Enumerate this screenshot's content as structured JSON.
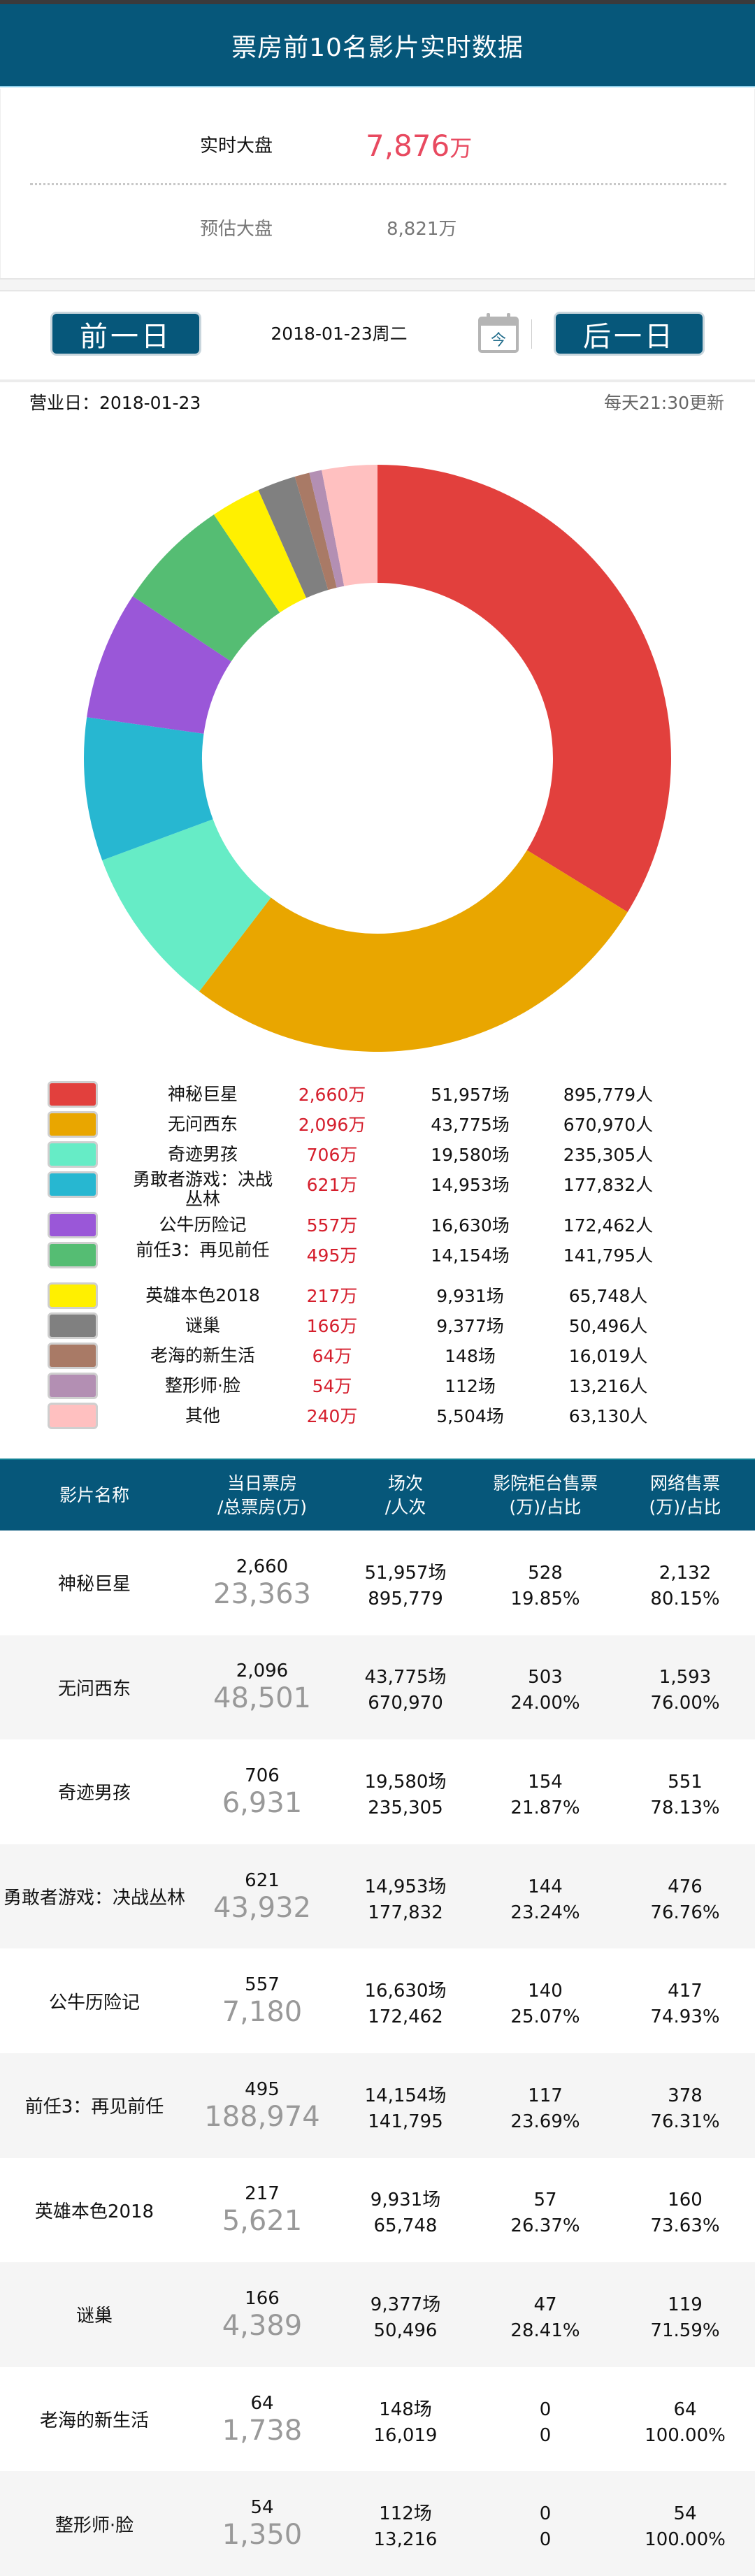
{
  "header": {
    "title": "票房前10名影片实时数据"
  },
  "summary": {
    "realtime_label": "实时大盘",
    "realtime_value": "7,876",
    "realtime_unit": "万",
    "estimate_label": "预估大盘",
    "estimate_value": "8,821万"
  },
  "datenav": {
    "prev_label": "前一日",
    "next_label": "后一日",
    "date": "2018-01-23周二",
    "today_icon_char": "今",
    "business_day": "营业日：2018-01-23",
    "update_note": "每天21:30更新"
  },
  "colors": {
    "brand": "#06577a",
    "realtime_red": "#e84a60",
    "legend_red": "#d51e2c"
  },
  "chart_data": {
    "type": "pie",
    "subtype": "donut",
    "title": "",
    "unit": "万",
    "categories": [
      "神秘巨星",
      "无问西东",
      "奇迹男孩",
      "勇敢者游戏：决战丛林",
      "公牛历险记",
      "前任3：再见前任",
      "英雄本色2018",
      "谜巢",
      "老海的新生活",
      "整形师·脸",
      "其他"
    ],
    "values": [
      2660,
      2096,
      706,
      621,
      557,
      495,
      217,
      166,
      64,
      54,
      240
    ],
    "colors": [
      "#e2403d",
      "#e9a600",
      "#66ecc6",
      "#27b7d1",
      "#9a57d8",
      "#55bd73",
      "#fff000",
      "#808080",
      "#a97a66",
      "#b38fb3",
      "#ffc0c0"
    ],
    "legend_position": "bottom",
    "start_angle": "12 o'clock, clockwise"
  },
  "legend": {
    "items": [
      {
        "name": "神秘巨星",
        "box": "2,660万",
        "shows": "51,957场",
        "audience": "895,779人",
        "lines": 1
      },
      {
        "name": "无问西东",
        "box": "2,096万",
        "shows": "43,775场",
        "audience": "670,970人",
        "lines": 1
      },
      {
        "name": "奇迹男孩",
        "box": "706万",
        "shows": "19,580场",
        "audience": "235,305人",
        "lines": 1
      },
      {
        "name": "勇敢者游戏：决战丛林",
        "box": "621万",
        "shows": "14,953场",
        "audience": "177,832人",
        "lines": 2
      },
      {
        "name": "公牛历险记",
        "box": "557万",
        "shows": "16,630场",
        "audience": "172,462人",
        "lines": 1
      },
      {
        "name": "前任3：再见前任",
        "box": "495万",
        "shows": "14,154场",
        "audience": "141,795人",
        "lines": 2
      },
      {
        "name": "英雄本色2018",
        "box": "217万",
        "shows": "9,931场",
        "audience": "65,748人",
        "lines": 1
      },
      {
        "name": "谜巢",
        "box": "166万",
        "shows": "9,377场",
        "audience": "50,496人",
        "lines": 1
      },
      {
        "name": "老海的新生活",
        "box": "64万",
        "shows": "148场",
        "audience": "16,019人",
        "lines": 1
      },
      {
        "name": "整形师·脸",
        "box": "54万",
        "shows": "112场",
        "audience": "13,216人",
        "lines": 1
      },
      {
        "name": "其他",
        "box": "240万",
        "shows": "5,504场",
        "audience": "63,130人",
        "lines": 1
      }
    ]
  },
  "table": {
    "headers": [
      {
        "l1": "影片名称",
        "l2": ""
      },
      {
        "l1": "当日票房",
        "l2": "/总票房(万)"
      },
      {
        "l1": "场次",
        "l2": "/人次"
      },
      {
        "l1": "影院柜台售票",
        "l2": "(万)/占比"
      },
      {
        "l1": "网络售票",
        "l2": "(万)/占比"
      }
    ],
    "rows": [
      {
        "name": "神秘巨星",
        "day": "2,660",
        "total": "23,363",
        "shows": "51,957场",
        "audience": "895,779",
        "counter": "528",
        "counter_pct": "19.85%",
        "online": "2,132",
        "online_pct": "80.15%"
      },
      {
        "name": "无问西东",
        "day": "2,096",
        "total": "48,501",
        "shows": "43,775场",
        "audience": "670,970",
        "counter": "503",
        "counter_pct": "24.00%",
        "online": "1,593",
        "online_pct": "76.00%"
      },
      {
        "name": "奇迹男孩",
        "day": "706",
        "total": "6,931",
        "shows": "19,580场",
        "audience": "235,305",
        "counter": "154",
        "counter_pct": "21.87%",
        "online": "551",
        "online_pct": "78.13%"
      },
      {
        "name": "勇敢者游戏：决战丛林",
        "day": "621",
        "total": "43,932",
        "shows": "14,953场",
        "audience": "177,832",
        "counter": "144",
        "counter_pct": "23.24%",
        "online": "476",
        "online_pct": "76.76%"
      },
      {
        "name": "公牛历险记",
        "day": "557",
        "total": "7,180",
        "shows": "16,630场",
        "audience": "172,462",
        "counter": "140",
        "counter_pct": "25.07%",
        "online": "417",
        "online_pct": "74.93%"
      },
      {
        "name": "前任3：再见前任",
        "day": "495",
        "total": "188,974",
        "shows": "14,154场",
        "audience": "141,795",
        "counter": "117",
        "counter_pct": "23.69%",
        "online": "378",
        "online_pct": "76.31%"
      },
      {
        "name": "英雄本色2018",
        "day": "217",
        "total": "5,621",
        "shows": "9,931场",
        "audience": "65,748",
        "counter": "57",
        "counter_pct": "26.37%",
        "online": "160",
        "online_pct": "73.63%"
      },
      {
        "name": "谜巢",
        "day": "166",
        "total": "4,389",
        "shows": "9,377场",
        "audience": "50,496",
        "counter": "47",
        "counter_pct": "28.41%",
        "online": "119",
        "online_pct": "71.59%"
      },
      {
        "name": "老海的新生活",
        "day": "64",
        "total": "1,738",
        "shows": "148场",
        "audience": "16,019",
        "counter": "0",
        "counter_pct": "0",
        "online": "64",
        "online_pct": "100.00%"
      },
      {
        "name": "整形师·脸",
        "day": "54",
        "total": "1,350",
        "shows": "112场",
        "audience": "13,216",
        "counter": "0",
        "counter_pct": "0",
        "online": "54",
        "online_pct": "100.00%"
      }
    ]
  }
}
